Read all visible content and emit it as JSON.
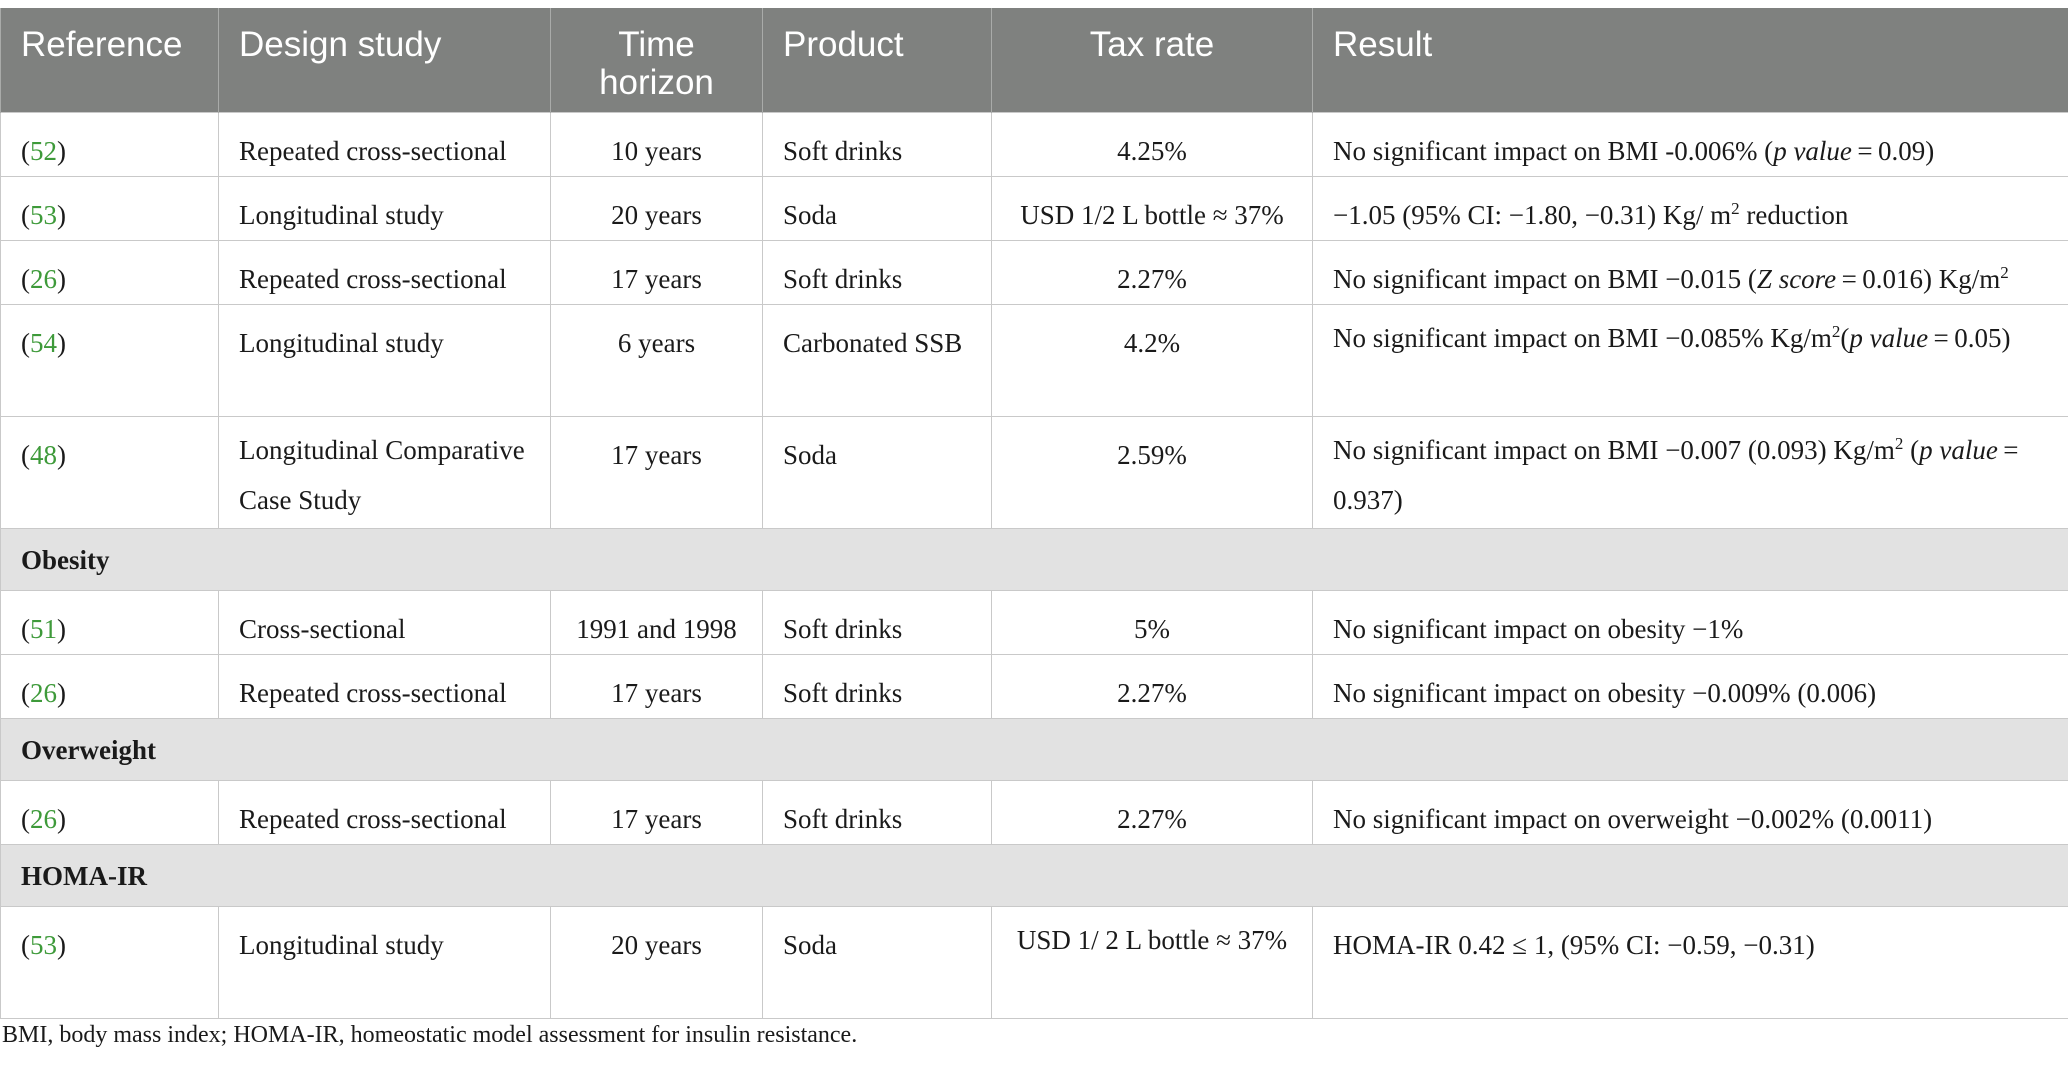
{
  "headers": [
    "Reference",
    "Design study",
    "Time horizon",
    "Product",
    "Tax rate",
    "Result"
  ],
  "rows": [
    {
      "ref": "52",
      "design": "Repeated cross-sectional",
      "time": "10 years",
      "product": "Soft drinks",
      "tax": "4.25%"
    },
    {
      "ref": "53",
      "design": "Longitudinal study",
      "time": "20 years",
      "product": "Soda",
      "tax": "USD 1/2 L bottle ≈ 37%"
    },
    {
      "ref": "26",
      "design": "Repeated cross-sectional",
      "time": "17 years",
      "product": "Soft drinks",
      "tax": "2.27%"
    },
    {
      "ref": "54",
      "design": "Longitudinal study",
      "time": "6 years",
      "product": "Carbonated SSB",
      "tax": "4.2%"
    },
    {
      "ref": "48",
      "design": "Longitudinal Comparative Case Study",
      "time": "17 years",
      "product": "Soda",
      "tax": "2.59%"
    },
    {
      "ref": "51",
      "design": "Cross-sectional",
      "time": "1991 and 1998",
      "product": "Soft drinks",
      "tax": "5%"
    },
    {
      "ref": "26",
      "design": "Repeated cross-sectional",
      "time": "17 years",
      "product": "Soft drinks",
      "tax": "2.27%"
    },
    {
      "ref": "26",
      "design": "Repeated cross-sectional",
      "time": "17 years",
      "product": "Soft drinks",
      "tax": "2.27%"
    },
    {
      "ref": "53",
      "design": "Longitudinal study",
      "time": "20 years",
      "product": "Soda",
      "tax": "USD 1/ 2 L bottle ≈ 37%"
    }
  ],
  "results": {
    "r1": {
      "a": "No significant impact on BMI -0.006% (",
      "i": "p value",
      "b": " = 0.09)"
    },
    "r2": {
      "a": "−1.05 (95% CI: −1.80, −0.31) Kg/ m",
      "sup": "2",
      "b": " reduction"
    },
    "r3": {
      "a": "No significant impact on BMI −0.015 (",
      "i": "Z score",
      "b": " = 0.016) Kg/m",
      "sup": "2"
    },
    "r4": {
      "a": "No significant impact on BMI −0.085% Kg/m",
      "sup": "2",
      "b": "(",
      "i": "p value",
      "c": " = 0.05)"
    },
    "r5": {
      "a": "No significant impact on BMI −0.007 (0.093) Kg/m",
      "sup": "2",
      "b": " (",
      "i": "p value",
      "c": " = 0.937)"
    },
    "r6": "No significant impact on obesity −1%",
    "r7": "No significant impact on obesity −0.009% (0.006)",
    "r8": "No significant impact on overweight −0.002% (0.0011)",
    "r9": "HOMA-IR 0.42 ≤ 1, (95% CI: −0.59, −0.31)"
  },
  "sections": {
    "obesity": "Obesity",
    "overweight": "Overweight",
    "homa": "HOMA-IR"
  },
  "footnote": "BMI, body mass index; HOMA-IR, homeostatic model assessment for insulin resistance."
}
